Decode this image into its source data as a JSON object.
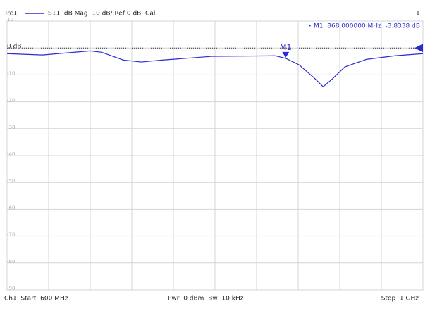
{
  "chart_data": {
    "type": "line",
    "header": {
      "trace": "Trc1",
      "trace_desc": "S11  dB Mag  10 dB/ Ref 0 dB  Cal",
      "channel": "1"
    },
    "footer": {
      "start": "Ch1  Start  600 MHz",
      "power": "Pwr  0 dBm  Bw  10 kHz",
      "stop": "Stop  1 GHz"
    },
    "x": [
      600,
      634,
      680,
      691,
      712,
      729,
      749,
      797,
      858,
      868,
      881,
      895,
      904,
      912,
      925,
      946,
      973,
      1000
    ],
    "series": [
      {
        "name": "S11",
        "color": "#2a2ad8",
        "values": [
          -2.1,
          -2.6,
          -1.1,
          -1.6,
          -4.5,
          -5.2,
          -4.5,
          -3.1,
          -2.9,
          -3.8338,
          -6.3,
          -11,
          -14.4,
          -11.8,
          -7,
          -4.2,
          -2.9,
          -2.1
        ]
      }
    ],
    "xlim": [
      600,
      1000
    ],
    "xticks": [
      600,
      640,
      680,
      720,
      760,
      800,
      840,
      880,
      920,
      960,
      1000
    ],
    "ylim": [
      -90,
      10
    ],
    "yticks": [
      10,
      {
        "value": 0,
        "label": "0 dB"
      },
      -10,
      -20,
      -30,
      -40,
      -50,
      -60,
      -70,
      -80,
      -90
    ],
    "ref_level": 0,
    "marker": {
      "name": "M1",
      "x": 868,
      "y": -3.8338,
      "readout": "• M1  868.000000 MHz  -3.8338 dB"
    },
    "grid": true
  }
}
